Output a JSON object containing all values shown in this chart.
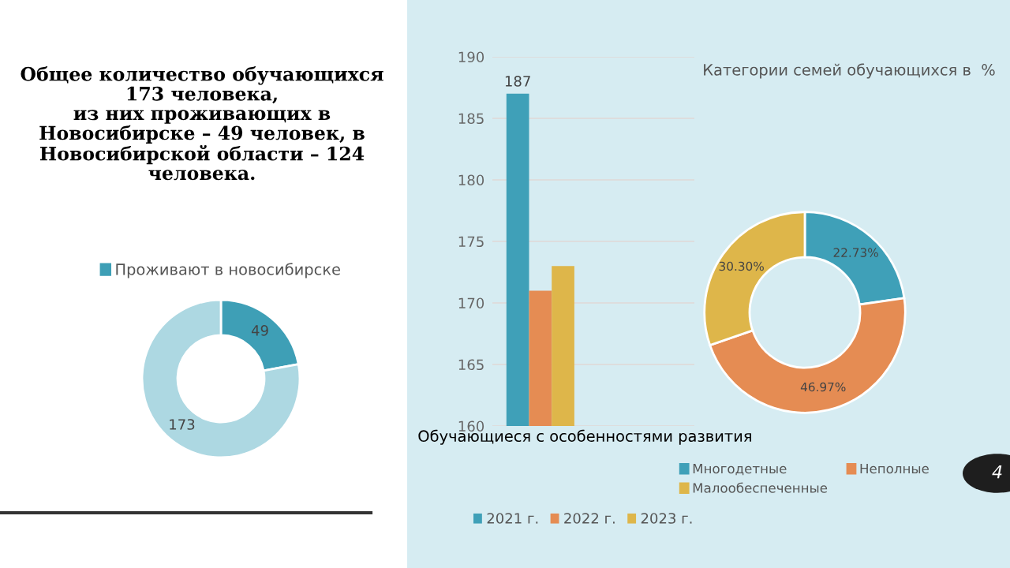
{
  "chart_data": [
    {
      "type": "other",
      "title": "Общее количество обучающихся\n173 человека,\nиз них проживающих в\nНовосибирске – 49 человек, в\nНовосибирской области – 124\nчеловека."
    },
    {
      "type": "donut",
      "categories": [
        "Проживают в новосибирске",
        null
      ],
      "values": [
        49,
        173
      ],
      "colors": [
        "#3e9fb6",
        "#add8e2"
      ],
      "data_labels": true,
      "legend": "top"
    },
    {
      "type": "bar",
      "xlabel": "Обучающиеся с особенностями развития",
      "categories": [
        null
      ],
      "series": [
        {
          "name": "2021 г.",
          "color": "#3fa0b8",
          "values": [
            187
          ],
          "value_labels": [
            "187"
          ]
        },
        {
          "name": "2022 г.",
          "color": "#e58c53",
          "values": [
            171
          ]
        },
        {
          "name": "2023 г.",
          "color": "#deb64a",
          "values": [
            173
          ]
        }
      ],
      "ylim": [
        160,
        190
      ],
      "yticks": [
        160,
        165,
        170,
        175,
        180,
        185,
        190
      ],
      "grid": "y",
      "legend": "bottom"
    },
    {
      "type": "donut",
      "title": "Категории семей обучающихся в  %",
      "categories": [
        "Многодетные",
        "Неполные",
        "Малообеспеченные"
      ],
      "values": [
        22.73,
        46.97,
        30.3
      ],
      "colors": [
        "#3fa0b8",
        "#e58c53",
        "#deb64a"
      ],
      "value_labels": [
        "22.73%",
        "46.97%",
        "30.30%"
      ],
      "legend": "bottom",
      "annotations": [
        "4"
      ]
    }
  ]
}
